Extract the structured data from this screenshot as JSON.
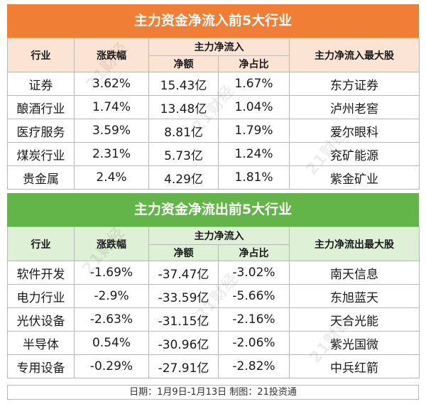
{
  "inflow": {
    "title": "主力资金净流入前5大行业",
    "headers": {
      "industry": "行业",
      "change": "涨跌幅",
      "net_flow": "主力净流入",
      "net_amount": "净额",
      "net_ratio": "净占比",
      "top_stock": "主力净流入最大股"
    },
    "rows": [
      {
        "industry": "证券",
        "change": "3.62%",
        "amount": "15.43亿",
        "ratio": "1.67%",
        "stock": "东方证券"
      },
      {
        "industry": "酿酒行业",
        "change": "1.74%",
        "amount": "13.48亿",
        "ratio": "1.04%",
        "stock": "泸州老窖"
      },
      {
        "industry": "医疗服务",
        "change": "3.59%",
        "amount": "8.81亿",
        "ratio": "1.79%",
        "stock": "爱尔眼科"
      },
      {
        "industry": "煤炭行业",
        "change": "2.31%",
        "amount": "5.73亿",
        "ratio": "1.24%",
        "stock": "兖矿能源"
      },
      {
        "industry": "贵金属",
        "change": "2.4%",
        "amount": "4.29亿",
        "ratio": "1.81%",
        "stock": "紫金矿业"
      }
    ]
  },
  "outflow": {
    "title": "主力资金净流出前5大行业",
    "headers": {
      "industry": "行业",
      "change": "涨跌幅",
      "net_flow": "主力净流入",
      "net_amount": "净额",
      "net_ratio": "净占比",
      "top_stock": "主力净流出最大股"
    },
    "rows": [
      {
        "industry": "软件开发",
        "change": "-1.69%",
        "amount": "-37.47亿",
        "ratio": "-3.02%",
        "stock": "南天信息"
      },
      {
        "industry": "电力行业",
        "change": "-2.9%",
        "amount": "-33.59亿",
        "ratio": "-5.66%",
        "stock": "东旭蓝天"
      },
      {
        "industry": "光伏设备",
        "change": "-2.63%",
        "amount": "-31.15亿",
        "ratio": "-2.16%",
        "stock": "天合光能"
      },
      {
        "industry": "半导体",
        "change": "0.54%",
        "amount": "-30.96亿",
        "ratio": "-2.06%",
        "stock": "紫光国微"
      },
      {
        "industry": "专用设备",
        "change": "-0.29%",
        "amount": "-27.91亿",
        "ratio": "-2.82%",
        "stock": "中兵红箭"
      }
    ]
  },
  "footer": "日期：1月9日-1月13日 制图：21投资通",
  "watermark": "21财经",
  "colors": {
    "inflow_banner": "#f07f35",
    "inflow_header": "#fbe4d3",
    "outflow_banner": "#63b54a",
    "outflow_header": "#def0d6"
  }
}
